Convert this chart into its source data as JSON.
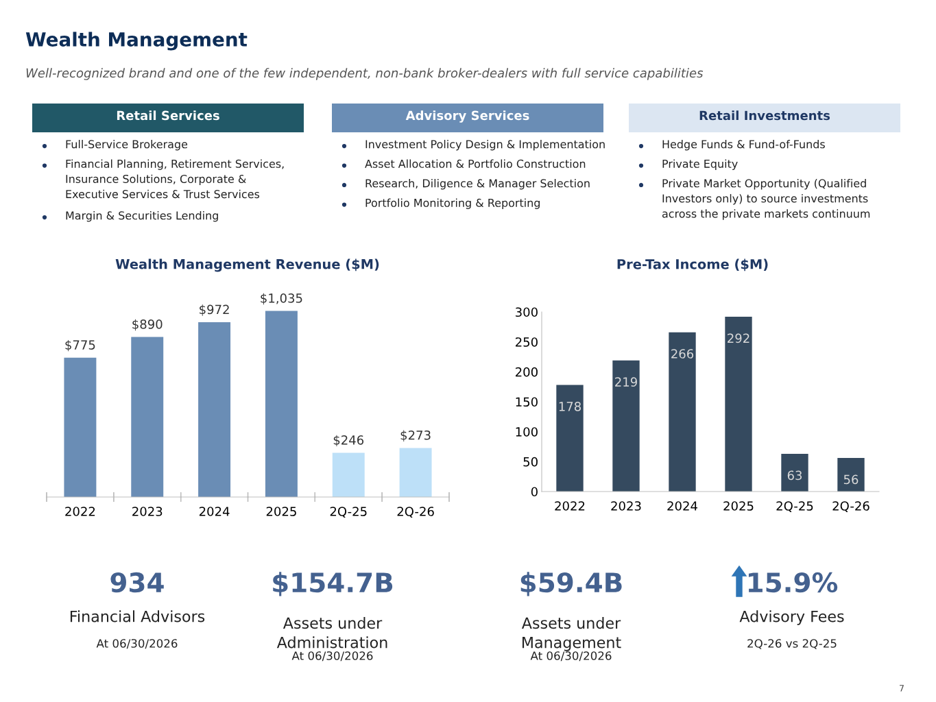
{
  "chart_data": [
    {
      "type": "other",
      "title": "Wealth Management",
      "subtitle": "Well-recognized brand and one of the few independent, non-bank broker-dealers with full service capabilities",
      "annotations": [
        "7"
      ]
    },
    {
      "type": "other",
      "title": "Retail Services",
      "annotations": [
        "Full-Service Brokerage",
        "Financial Planning, Retirement Services,\nInsurance Solutions, Corporate &\nExecutive Services & Trust Services",
        "Margin & Securities Lending"
      ]
    },
    {
      "type": "other",
      "title": "Advisory Services",
      "annotations": [
        "Investment Policy Design & Implementation",
        "Asset Allocation & Portfolio Construction",
        "Research, Diligence & Manager Selection",
        "Portfolio Monitoring & Reporting"
      ]
    },
    {
      "type": "other",
      "title": "Retail Investments",
      "annotations": [
        "Hedge Funds & Fund-of-Funds",
        "Private Equity",
        "Private Market Opportunity (Qualified\nInvestors only) to source investments\nacross the private markets continuum"
      ]
    },
    {
      "type": "bar",
      "title": "Wealth Management Revenue ($M)",
      "categories": [
        "2022",
        "2023",
        "2024",
        "2025",
        "2Q-25",
        "2Q-26"
      ],
      "values": [
        775,
        890,
        972,
        1035,
        246,
        273
      ],
      "colors": [
        "#6a8db5",
        "#6a8db5",
        "#6a8db5",
        "#6a8db5",
        "#bde0f8",
        "#bde0f8"
      ],
      "value_labels": [
        "$775",
        "$890",
        "$972",
        "$1,035",
        "$246",
        "$273"
      ],
      "tick_labels": "x"
    },
    {
      "type": "bar",
      "title": "Pre-Tax Income ($M)",
      "categories": [
        "2022",
        "2023",
        "2024",
        "2025",
        "2Q-25",
        "2Q-26"
      ],
      "values": [
        178,
        219,
        266,
        292,
        63,
        56
      ],
      "color": "#354a5f",
      "ylim": [
        0,
        300
      ],
      "yticks": [
        0,
        50,
        100,
        150,
        200,
        250,
        300
      ],
      "data_labels": true,
      "grid": false
    },
    {
      "type": "other",
      "title": "934",
      "subtitle": "Financial Advisors",
      "annotations": [
        "At 06/30/2026"
      ]
    },
    {
      "type": "other",
      "title": "$154.7B",
      "subtitle": "Assets under\nAdministration",
      "annotations": [
        "At 06/30/2026"
      ]
    },
    {
      "type": "other",
      "title": "$59.4B",
      "subtitle": "Assets under\nManagement",
      "annotations": [
        "At 06/30/2026"
      ]
    },
    {
      "type": "other",
      "title": "15.9%",
      "subtitle": "Advisory Fees",
      "annotations": [
        "2Q-26 vs 2Q-25"
      ]
    }
  ]
}
